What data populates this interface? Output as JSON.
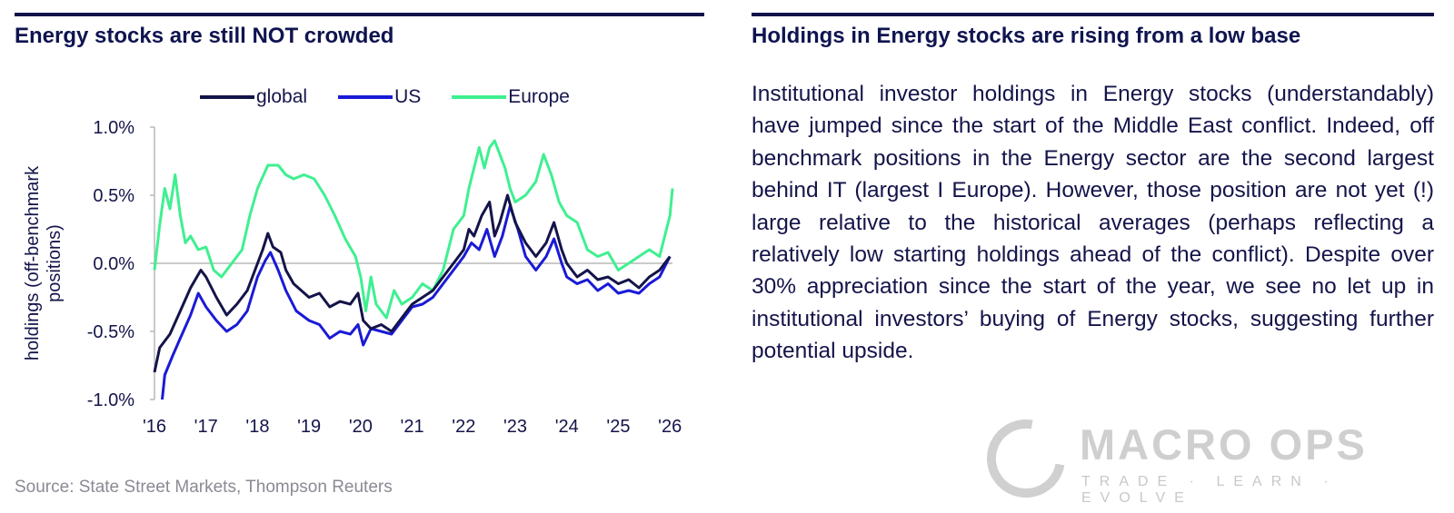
{
  "left_panel": {
    "title": "Energy stocks are still NOT crowded"
  },
  "right_panel": {
    "title": "Holdings in Energy stocks are rising from a low base",
    "body": "Institutional investor holdings in Energy stocks (understandably) have jumped since the start of the Middle East conflict.  Indeed, off benchmark positions in the Energy sector are the second largest behind IT (largest I Europe).  However, those position are not yet (!) large relative to the historical averages (perhaps reflecting a relatively low starting holdings ahead of the conflict). Despite over 30% appreciation since the start of the year, we see no let up in institutional investors’ buying of Energy stocks, suggesting further potential upside."
  },
  "source": "Source: State Street Markets, Thompson Reuters",
  "logo": {
    "name": "MACRO OPS",
    "tagline": "TRADE · LEARN · EVOLVE"
  },
  "colors": {
    "global": "#14144a",
    "us": "#1a1ad6",
    "europe": "#3ef090",
    "rule": "#12124a"
  },
  "chart_data": {
    "type": "line",
    "title": "Energy stocks are still NOT crowded",
    "ylabel": "holdings (off-benchmark positions)",
    "ylabel_lines": [
      "holdings (off-benchmark",
      "positions)"
    ],
    "xlabel": "",
    "ylim": [
      -1.0,
      1.0
    ],
    "yticks": [
      1.0,
      0.5,
      0.0,
      -0.5,
      -1.0
    ],
    "ytick_labels": [
      "1.0%",
      "0.5%",
      "0.0%",
      "-0.5%",
      "-1.0%"
    ],
    "xlim": [
      2016,
      2026.05
    ],
    "xticks": [
      2016,
      2017,
      2018,
      2019,
      2020,
      2021,
      2022,
      2023,
      2024,
      2025,
      2026
    ],
    "xtick_labels": [
      "'16",
      "'17",
      "'18",
      "'19",
      "'20",
      "'21",
      "'22",
      "'23",
      "'24",
      "'25",
      "'26"
    ],
    "grid": false,
    "legend_position": "top",
    "series": [
      {
        "name": "global",
        "points": [
          [
            2016.0,
            -0.8
          ],
          [
            2016.1,
            -0.62
          ],
          [
            2016.3,
            -0.52
          ],
          [
            2016.5,
            -0.35
          ],
          [
            2016.7,
            -0.18
          ],
          [
            2016.9,
            -0.05
          ],
          [
            2017.0,
            -0.1
          ],
          [
            2017.2,
            -0.25
          ],
          [
            2017.4,
            -0.38
          ],
          [
            2017.6,
            -0.3
          ],
          [
            2017.8,
            -0.2
          ],
          [
            2017.95,
            -0.05
          ],
          [
            2018.1,
            0.1
          ],
          [
            2018.2,
            0.22
          ],
          [
            2018.3,
            0.12
          ],
          [
            2018.45,
            0.08
          ],
          [
            2018.55,
            -0.05
          ],
          [
            2018.7,
            -0.15
          ],
          [
            2018.85,
            -0.2
          ],
          [
            2019.0,
            -0.25
          ],
          [
            2019.2,
            -0.22
          ],
          [
            2019.4,
            -0.32
          ],
          [
            2019.6,
            -0.28
          ],
          [
            2019.8,
            -0.3
          ],
          [
            2019.95,
            -0.22
          ],
          [
            2020.05,
            -0.42
          ],
          [
            2020.2,
            -0.48
          ],
          [
            2020.4,
            -0.45
          ],
          [
            2020.6,
            -0.5
          ],
          [
            2020.8,
            -0.4
          ],
          [
            2021.0,
            -0.3
          ],
          [
            2021.2,
            -0.25
          ],
          [
            2021.4,
            -0.2
          ],
          [
            2021.6,
            -0.1
          ],
          [
            2021.8,
            0.0
          ],
          [
            2022.0,
            0.1
          ],
          [
            2022.1,
            0.25
          ],
          [
            2022.2,
            0.2
          ],
          [
            2022.35,
            0.35
          ],
          [
            2022.5,
            0.45
          ],
          [
            2022.6,
            0.2
          ],
          [
            2022.7,
            0.3
          ],
          [
            2022.85,
            0.5
          ],
          [
            2023.0,
            0.3
          ],
          [
            2023.2,
            0.15
          ],
          [
            2023.4,
            0.05
          ],
          [
            2023.6,
            0.15
          ],
          [
            2023.75,
            0.3
          ],
          [
            2023.9,
            0.1
          ],
          [
            2024.0,
            0.0
          ],
          [
            2024.2,
            -0.1
          ],
          [
            2024.4,
            -0.05
          ],
          [
            2024.6,
            -0.12
          ],
          [
            2024.8,
            -0.1
          ],
          [
            2025.0,
            -0.15
          ],
          [
            2025.2,
            -0.12
          ],
          [
            2025.4,
            -0.18
          ],
          [
            2025.6,
            -0.1
          ],
          [
            2025.8,
            -0.05
          ],
          [
            2026.0,
            0.05
          ]
        ]
      },
      {
        "name": "US",
        "points": [
          [
            2016.15,
            -1.0
          ],
          [
            2016.2,
            -0.82
          ],
          [
            2016.35,
            -0.68
          ],
          [
            2016.5,
            -0.55
          ],
          [
            2016.7,
            -0.38
          ],
          [
            2016.85,
            -0.22
          ],
          [
            2017.0,
            -0.32
          ],
          [
            2017.2,
            -0.42
          ],
          [
            2017.4,
            -0.5
          ],
          [
            2017.6,
            -0.45
          ],
          [
            2017.8,
            -0.35
          ],
          [
            2018.0,
            -0.1
          ],
          [
            2018.15,
            0.02
          ],
          [
            2018.25,
            0.08
          ],
          [
            2018.4,
            -0.05
          ],
          [
            2018.55,
            -0.2
          ],
          [
            2018.75,
            -0.35
          ],
          [
            2019.0,
            -0.42
          ],
          [
            2019.2,
            -0.45
          ],
          [
            2019.4,
            -0.55
          ],
          [
            2019.6,
            -0.5
          ],
          [
            2019.8,
            -0.52
          ],
          [
            2019.95,
            -0.45
          ],
          [
            2020.05,
            -0.6
          ],
          [
            2020.2,
            -0.48
          ],
          [
            2020.4,
            -0.5
          ],
          [
            2020.6,
            -0.52
          ],
          [
            2020.8,
            -0.42
          ],
          [
            2021.0,
            -0.32
          ],
          [
            2021.2,
            -0.3
          ],
          [
            2021.4,
            -0.25
          ],
          [
            2021.6,
            -0.15
          ],
          [
            2021.8,
            -0.05
          ],
          [
            2022.0,
            0.05
          ],
          [
            2022.15,
            0.15
          ],
          [
            2022.3,
            0.1
          ],
          [
            2022.45,
            0.25
          ],
          [
            2022.6,
            0.05
          ],
          [
            2022.75,
            0.2
          ],
          [
            2022.9,
            0.42
          ],
          [
            2023.05,
            0.25
          ],
          [
            2023.2,
            0.05
          ],
          [
            2023.4,
            -0.05
          ],
          [
            2023.6,
            0.05
          ],
          [
            2023.75,
            0.18
          ],
          [
            2023.9,
            0.0
          ],
          [
            2024.0,
            -0.1
          ],
          [
            2024.2,
            -0.15
          ],
          [
            2024.4,
            -0.12
          ],
          [
            2024.6,
            -0.2
          ],
          [
            2024.8,
            -0.15
          ],
          [
            2025.0,
            -0.22
          ],
          [
            2025.2,
            -0.2
          ],
          [
            2025.4,
            -0.22
          ],
          [
            2025.6,
            -0.15
          ],
          [
            2025.8,
            -0.1
          ],
          [
            2026.0,
            0.05
          ]
        ]
      },
      {
        "name": "Europe",
        "points": [
          [
            2016.0,
            -0.05
          ],
          [
            2016.1,
            0.28
          ],
          [
            2016.2,
            0.55
          ],
          [
            2016.3,
            0.4
          ],
          [
            2016.4,
            0.65
          ],
          [
            2016.5,
            0.35
          ],
          [
            2016.6,
            0.15
          ],
          [
            2016.7,
            0.2
          ],
          [
            2016.85,
            0.1
          ],
          [
            2017.0,
            0.12
          ],
          [
            2017.15,
            -0.05
          ],
          [
            2017.3,
            -0.1
          ],
          [
            2017.5,
            0.0
          ],
          [
            2017.7,
            0.1
          ],
          [
            2017.85,
            0.35
          ],
          [
            2018.0,
            0.55
          ],
          [
            2018.2,
            0.72
          ],
          [
            2018.4,
            0.72
          ],
          [
            2018.55,
            0.65
          ],
          [
            2018.7,
            0.62
          ],
          [
            2018.9,
            0.65
          ],
          [
            2019.1,
            0.62
          ],
          [
            2019.3,
            0.5
          ],
          [
            2019.5,
            0.35
          ],
          [
            2019.7,
            0.18
          ],
          [
            2019.9,
            0.05
          ],
          [
            2020.0,
            -0.1
          ],
          [
            2020.1,
            -0.35
          ],
          [
            2020.2,
            -0.1
          ],
          [
            2020.3,
            -0.3
          ],
          [
            2020.5,
            -0.4
          ],
          [
            2020.65,
            -0.2
          ],
          [
            2020.8,
            -0.3
          ],
          [
            2021.0,
            -0.25
          ],
          [
            2021.2,
            -0.15
          ],
          [
            2021.4,
            -0.2
          ],
          [
            2021.6,
            -0.05
          ],
          [
            2021.8,
            0.25
          ],
          [
            2022.0,
            0.35
          ],
          [
            2022.1,
            0.55
          ],
          [
            2022.2,
            0.7
          ],
          [
            2022.3,
            0.85
          ],
          [
            2022.4,
            0.7
          ],
          [
            2022.5,
            0.85
          ],
          [
            2022.6,
            0.9
          ],
          [
            2022.7,
            0.8
          ],
          [
            2022.8,
            0.7
          ],
          [
            2022.9,
            0.55
          ],
          [
            2023.0,
            0.45
          ],
          [
            2023.2,
            0.5
          ],
          [
            2023.4,
            0.6
          ],
          [
            2023.55,
            0.8
          ],
          [
            2023.7,
            0.65
          ],
          [
            2023.85,
            0.45
          ],
          [
            2024.0,
            0.35
          ],
          [
            2024.2,
            0.3
          ],
          [
            2024.4,
            0.1
          ],
          [
            2024.6,
            0.05
          ],
          [
            2024.8,
            0.08
          ],
          [
            2025.0,
            -0.05
          ],
          [
            2025.2,
            0.0
          ],
          [
            2025.4,
            0.05
          ],
          [
            2025.6,
            0.1
          ],
          [
            2025.8,
            0.05
          ],
          [
            2026.0,
            0.35
          ],
          [
            2026.05,
            0.55
          ]
        ]
      }
    ]
  }
}
